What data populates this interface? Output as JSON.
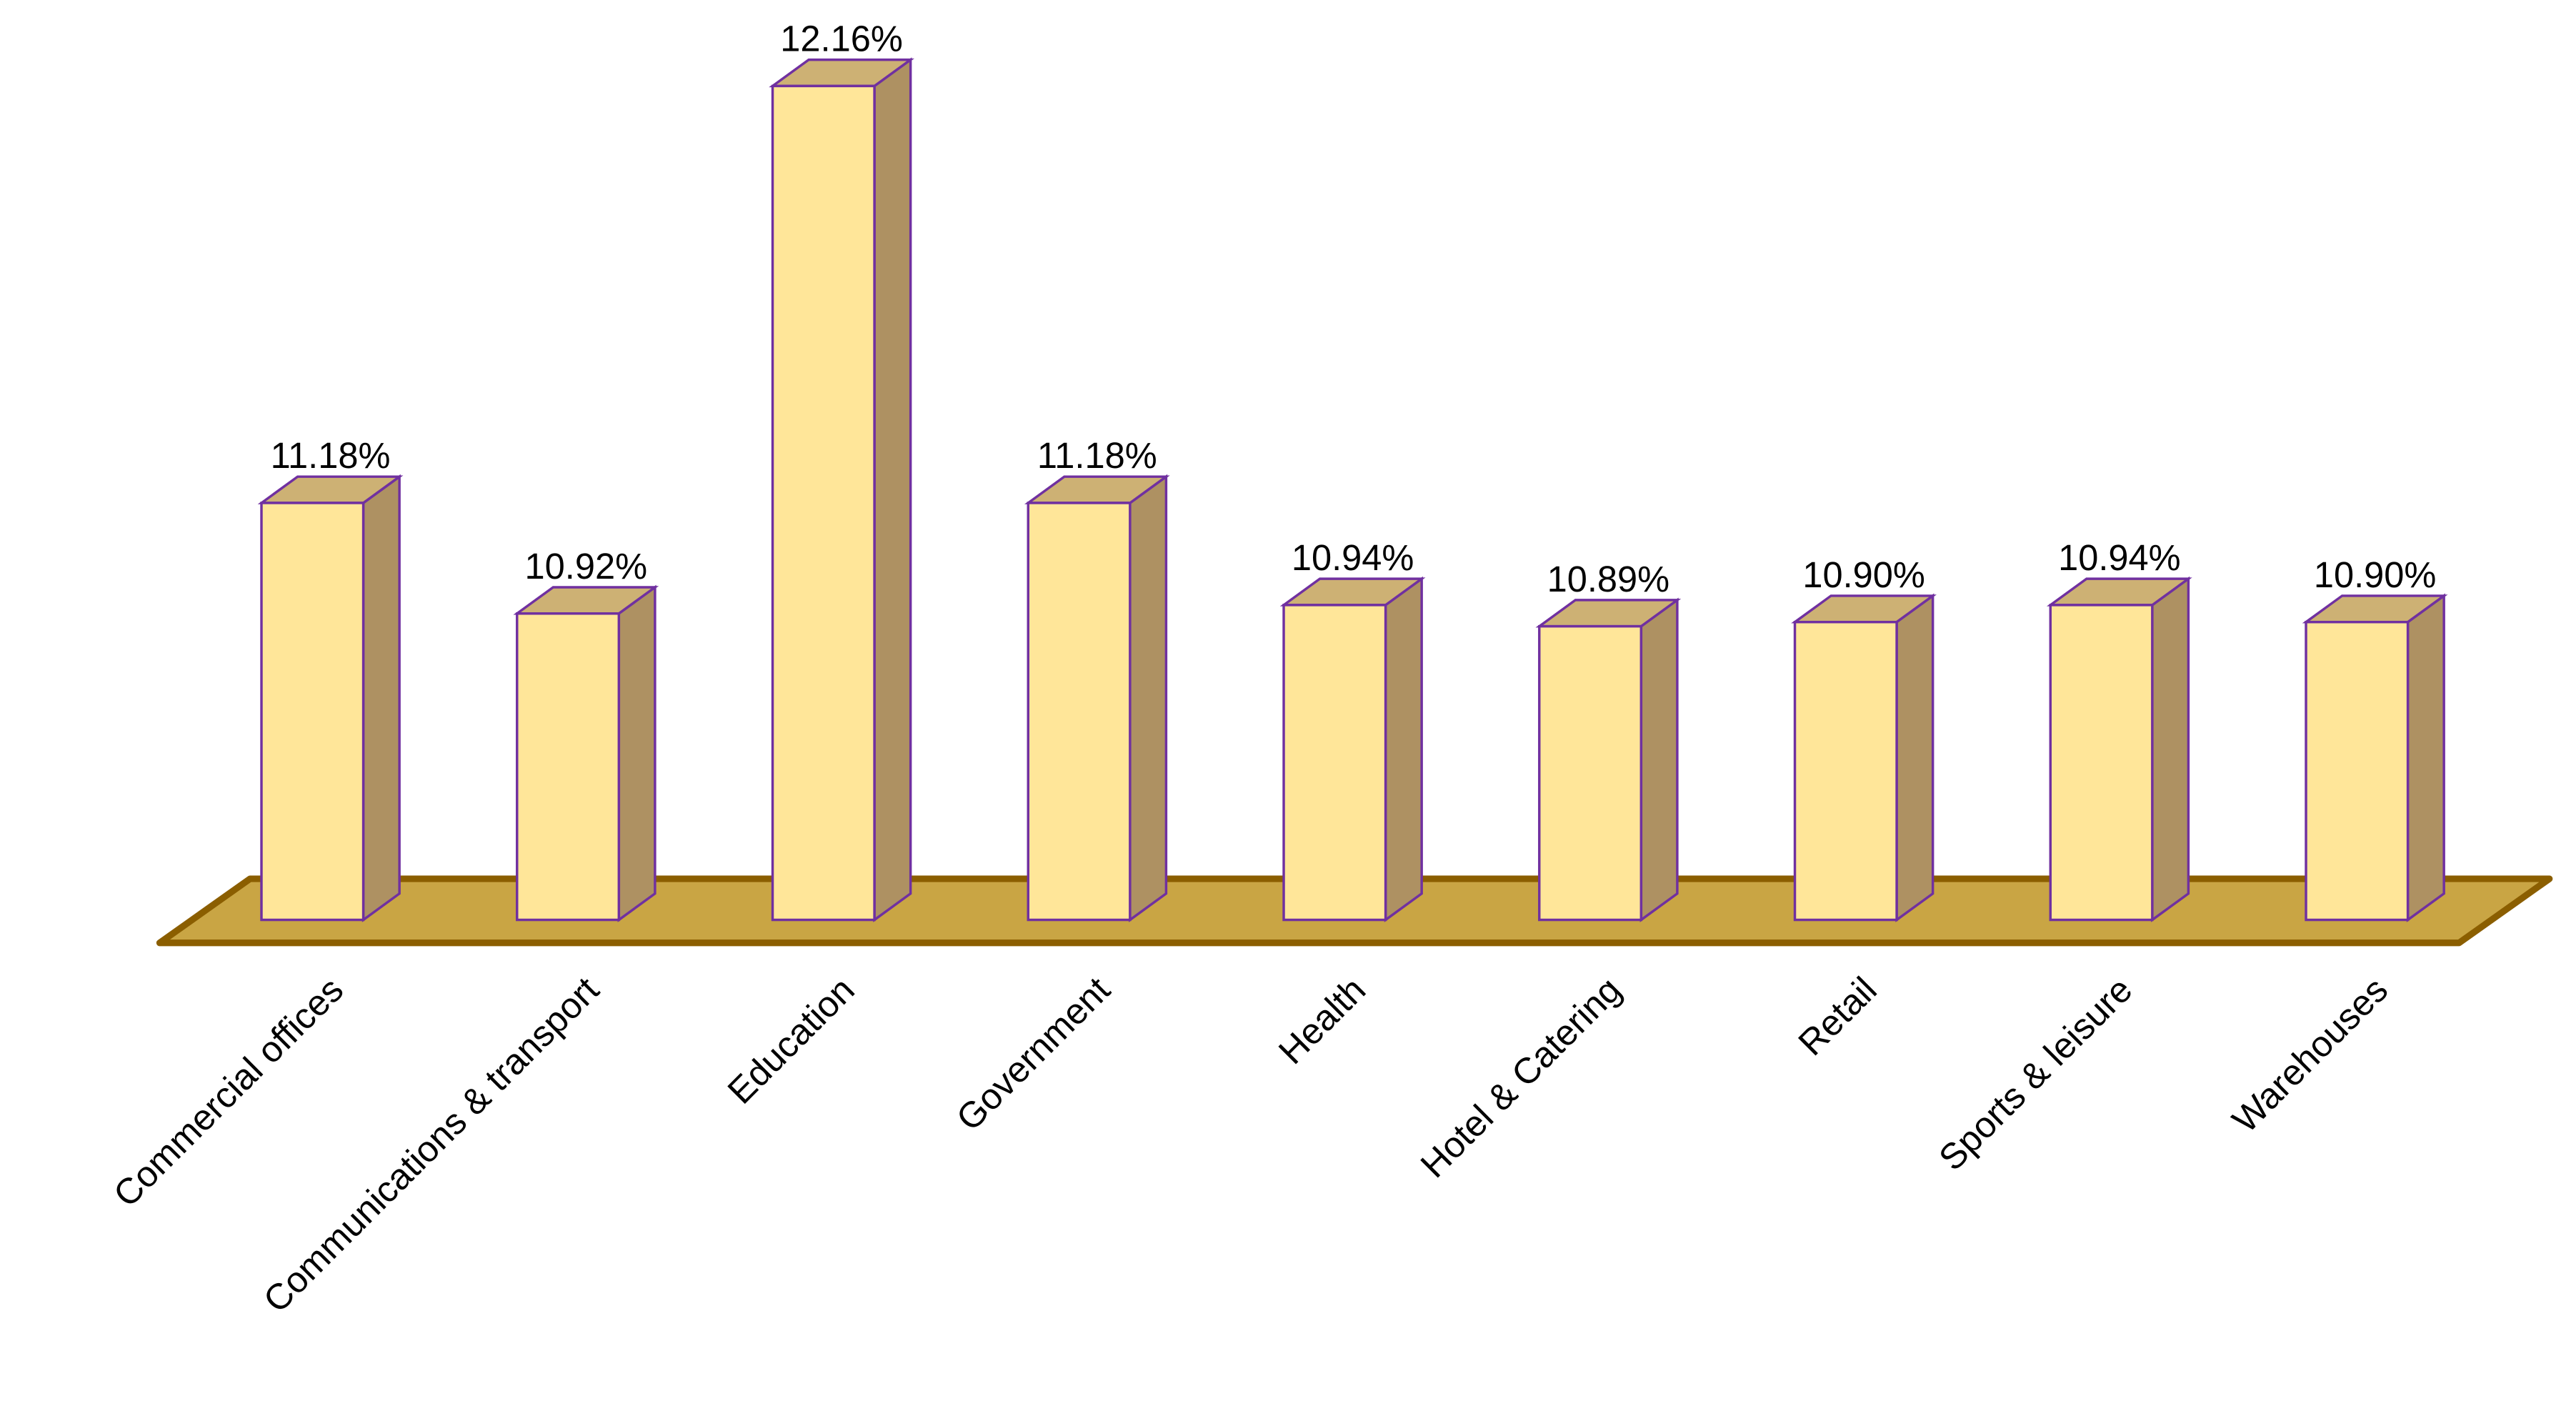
{
  "chart_data": {
    "type": "bar3d",
    "categories": [
      "Commercial offices",
      "Communications & transport",
      "Education",
      "Government",
      "Health",
      "Hotel & Catering",
      "Retail",
      "Sports & leisure",
      "Warehouses"
    ],
    "values": [
      11.18,
      10.92,
      12.16,
      11.18,
      10.94,
      10.89,
      10.9,
      10.94,
      10.9
    ],
    "value_labels": [
      "11.18%",
      "10.92%",
      "12.16%",
      "11.18%",
      "10.94%",
      "10.89%",
      "10.90%",
      "10.94%",
      "10.90%"
    ],
    "color": "#ffe699",
    "ylim": [
      10.2,
      12.2
    ]
  }
}
